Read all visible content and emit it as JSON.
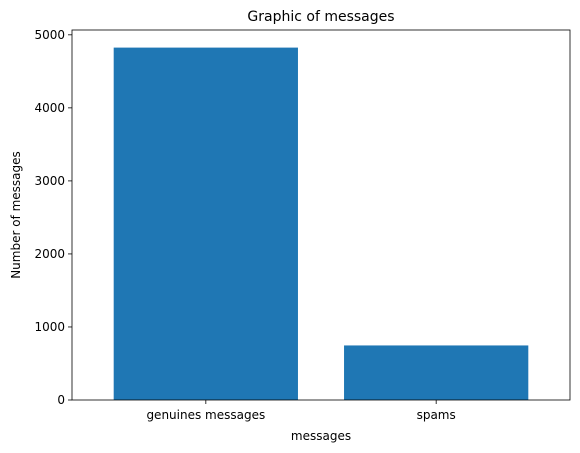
{
  "chart_data": {
    "type": "bar",
    "title": "Graphic of messages",
    "xlabel": "messages",
    "ylabel": "Number of messages",
    "categories": [
      "genuines messages",
      "spams"
    ],
    "values": [
      4825,
      747
    ],
    "ylim": [
      0,
      5066
    ],
    "yticks": [
      0,
      1000,
      2000,
      3000,
      4000,
      5000
    ],
    "bar_color": "#1f77b4",
    "grid": false,
    "legend": "none"
  }
}
